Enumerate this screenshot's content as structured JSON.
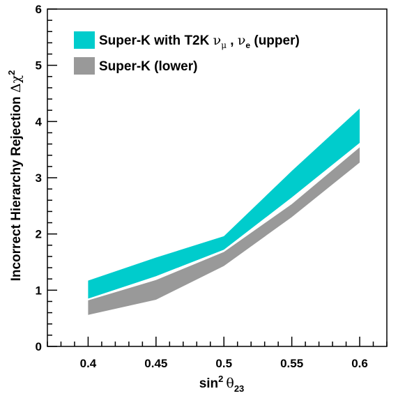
{
  "chart_data": {
    "type": "area",
    "xlabel": {
      "prefix": "sin",
      "sup": "2",
      "symbol": "θ",
      "sub": "23"
    },
    "ylabel": {
      "text": "Incorrect Hierarchy Rejection ",
      "symbol": "Δχ",
      "sup": "2"
    },
    "xlim": [
      0.37,
      0.62
    ],
    "ylim": [
      0,
      6
    ],
    "x_ticks": [
      "0.4",
      "0.45",
      "0.5",
      "0.55",
      "0.6"
    ],
    "y_ticks": [
      "0",
      "1",
      "2",
      "3",
      "4",
      "5",
      "6"
    ],
    "x": [
      0.4,
      0.45,
      0.5,
      0.55,
      0.6
    ],
    "legend_position": "top-left",
    "series": [
      {
        "name": "Super-K with T2K ν_μ , ν_e (upper)",
        "legend": {
          "prefix": "Super-K with T2K ",
          "nu1": "ν",
          "sub1": "μ",
          "sep": " , ",
          "nu2": "ν",
          "sub2": "e",
          "suffix": " (upper)"
        },
        "color": "#00cccc",
        "lower": [
          0.85,
          1.25,
          1.72,
          2.65,
          3.62
        ],
        "upper": [
          1.17,
          1.58,
          1.96,
          3.12,
          4.23
        ]
      },
      {
        "name": "Super-K (lower)",
        "legend": {
          "prefix": "Super-K (lower)"
        },
        "color": "#999999",
        "lower": [
          0.56,
          0.83,
          1.43,
          2.3,
          3.27
        ],
        "upper": [
          0.82,
          1.18,
          1.68,
          2.53,
          3.54
        ]
      }
    ],
    "grid": false
  }
}
